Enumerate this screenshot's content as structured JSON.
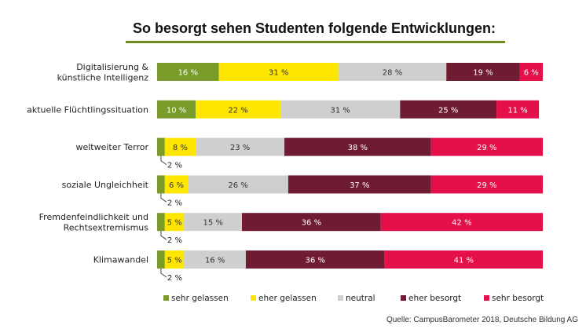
{
  "title": "So besorgt sehen Studenten folgende Entwicklungen:",
  "source": "Quelle: CampusBarometer 2018, Deutsche Bildung AG",
  "chart_data": {
    "type": "bar",
    "orientation": "horizontal",
    "stacked": "100%",
    "categories": [
      [
        "Digitalisierung &",
        "künstliche Intelligenz"
      ],
      [
        "aktuelle Flüchtlingssituation"
      ],
      [
        "weltweiter Terror"
      ],
      [
        "soziale Ungleichheit"
      ],
      [
        "Fremdenfeindlichkeit und",
        "Rechtsextremismus"
      ],
      [
        "Klimawandel"
      ]
    ],
    "series": [
      {
        "name": "sehr gelassen",
        "color": "#789b2a",
        "values": [
          16,
          10,
          2,
          2,
          2,
          2
        ]
      },
      {
        "name": "eher gelassen",
        "color": "#ffe600",
        "values": [
          31,
          22,
          8,
          6,
          5,
          5
        ]
      },
      {
        "name": "neutral",
        "color": "#cfcfcf",
        "values": [
          28,
          31,
          23,
          26,
          15,
          16
        ]
      },
      {
        "name": "eher besorgt",
        "color": "#6f1c32",
        "values": [
          19,
          25,
          38,
          37,
          36,
          36
        ]
      },
      {
        "name": "sehr besorgt",
        "color": "#e5104a",
        "values": [
          6,
          11,
          29,
          29,
          42,
          41
        ]
      }
    ],
    "value_suffix": " %",
    "legend_position": "bottom"
  }
}
